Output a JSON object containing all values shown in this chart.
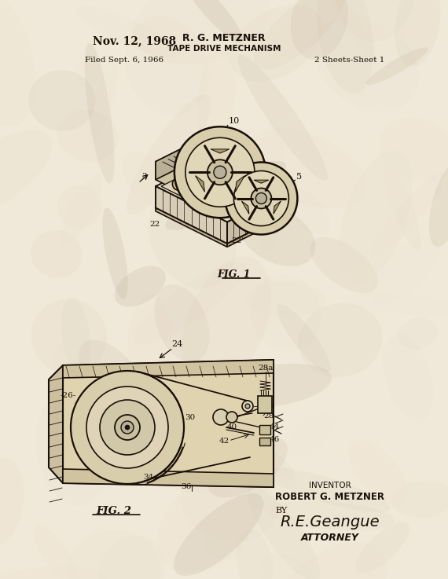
{
  "bg_color": "#f0e8d8",
  "bg_color2": "#e8dcc8",
  "line_color": "#1a1008",
  "text_color": "#1a1008",
  "title_date": "Nov. 12, 1968",
  "title_name": "R. G. METZNER",
  "title_subject": "TAPE DRIVE MECHANISM",
  "filed": "Filed Sept. 6, 1966",
  "sheets": "2 Sheets-Sheet 1",
  "fig1_label": "FIG. 1",
  "fig2_label": "FIG. 2",
  "inventor_label": "INVENTOR",
  "inventor_name": "ROBERT G. METZNER",
  "attorney_label": "ATTORNEY",
  "by_label": "BY",
  "signature": "R.E.Geangue"
}
